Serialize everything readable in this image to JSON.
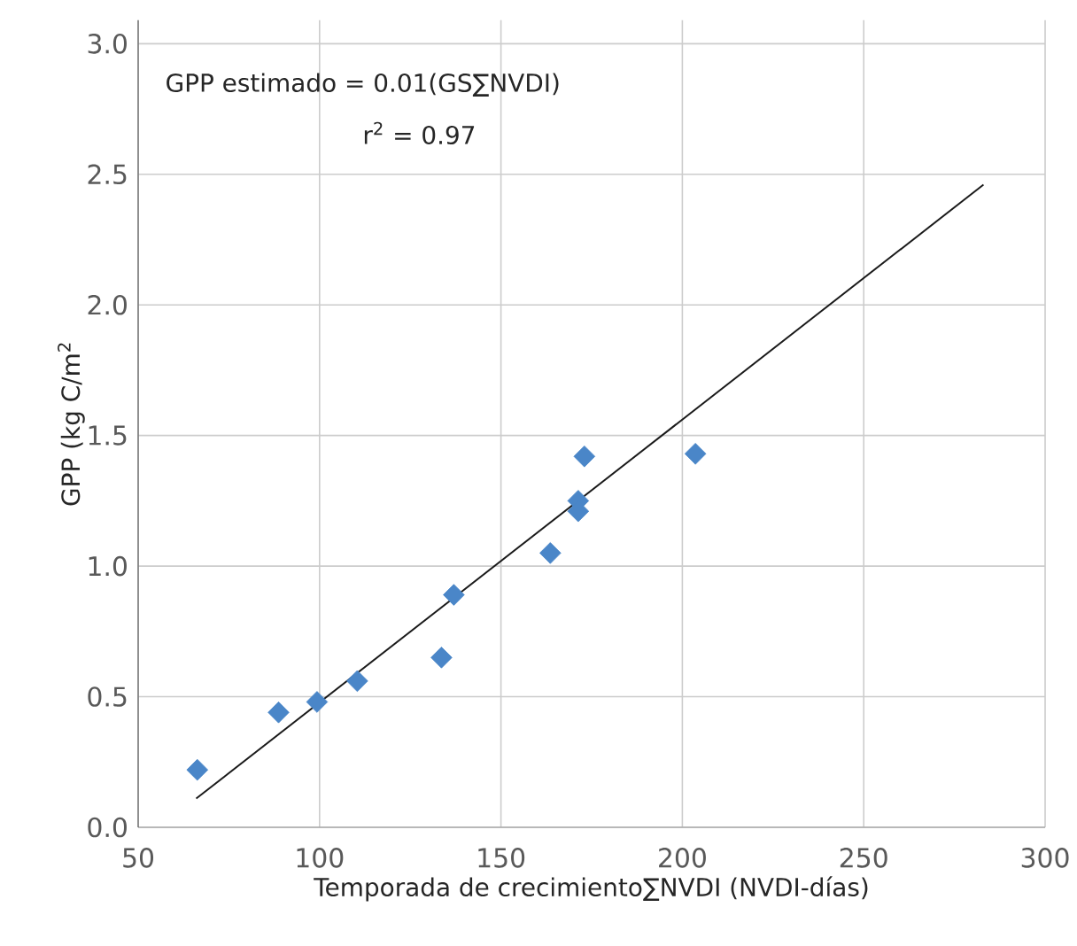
{
  "chart_data": {
    "type": "scatter",
    "xlabel": "Temporada de crecimiento∑NVDI (NVDI-días)",
    "ylabel": "GPP (kg C/m$^{2}$",
    "annotations": [
      "GPP estimado = 0.01(GS∑NVDI)",
      "r$^{2}$ = 0.97"
    ],
    "xlim": [
      50,
      300
    ],
    "xticks": [
      50,
      100,
      150,
      200,
      250,
      300
    ],
    "ylim": [
      0,
      3.09
    ],
    "yticks": [
      {
        "value": 0,
        "label": "0.0"
      },
      0.5,
      {
        "value": 1,
        "label": "1.0"
      },
      1.5,
      {
        "value": 2,
        "label": "2.0"
      },
      2.5,
      {
        "value": 3,
        "label": "3.0"
      }
    ],
    "grid": true,
    "series": [
      {
        "color": "#4a86c8",
        "marker": "diamond",
        "x": [
          66.3,
          88.7,
          99.3,
          110.4,
          133.6,
          137.0,
          163.6,
          171.3,
          171.3,
          173.0,
          203.6
        ],
        "values": [
          0.22,
          0.44,
          0.48,
          0.56,
          0.65,
          0.89,
          1.05,
          1.25,
          1.21,
          1.42,
          1.43
        ]
      },
      {
        "type": "line",
        "color": "#1a1a1a",
        "marker": "none",
        "line_style": "solid",
        "x": [
          66.0,
          283.0
        ],
        "values": [
          0.11,
          2.46
        ]
      }
    ]
  }
}
